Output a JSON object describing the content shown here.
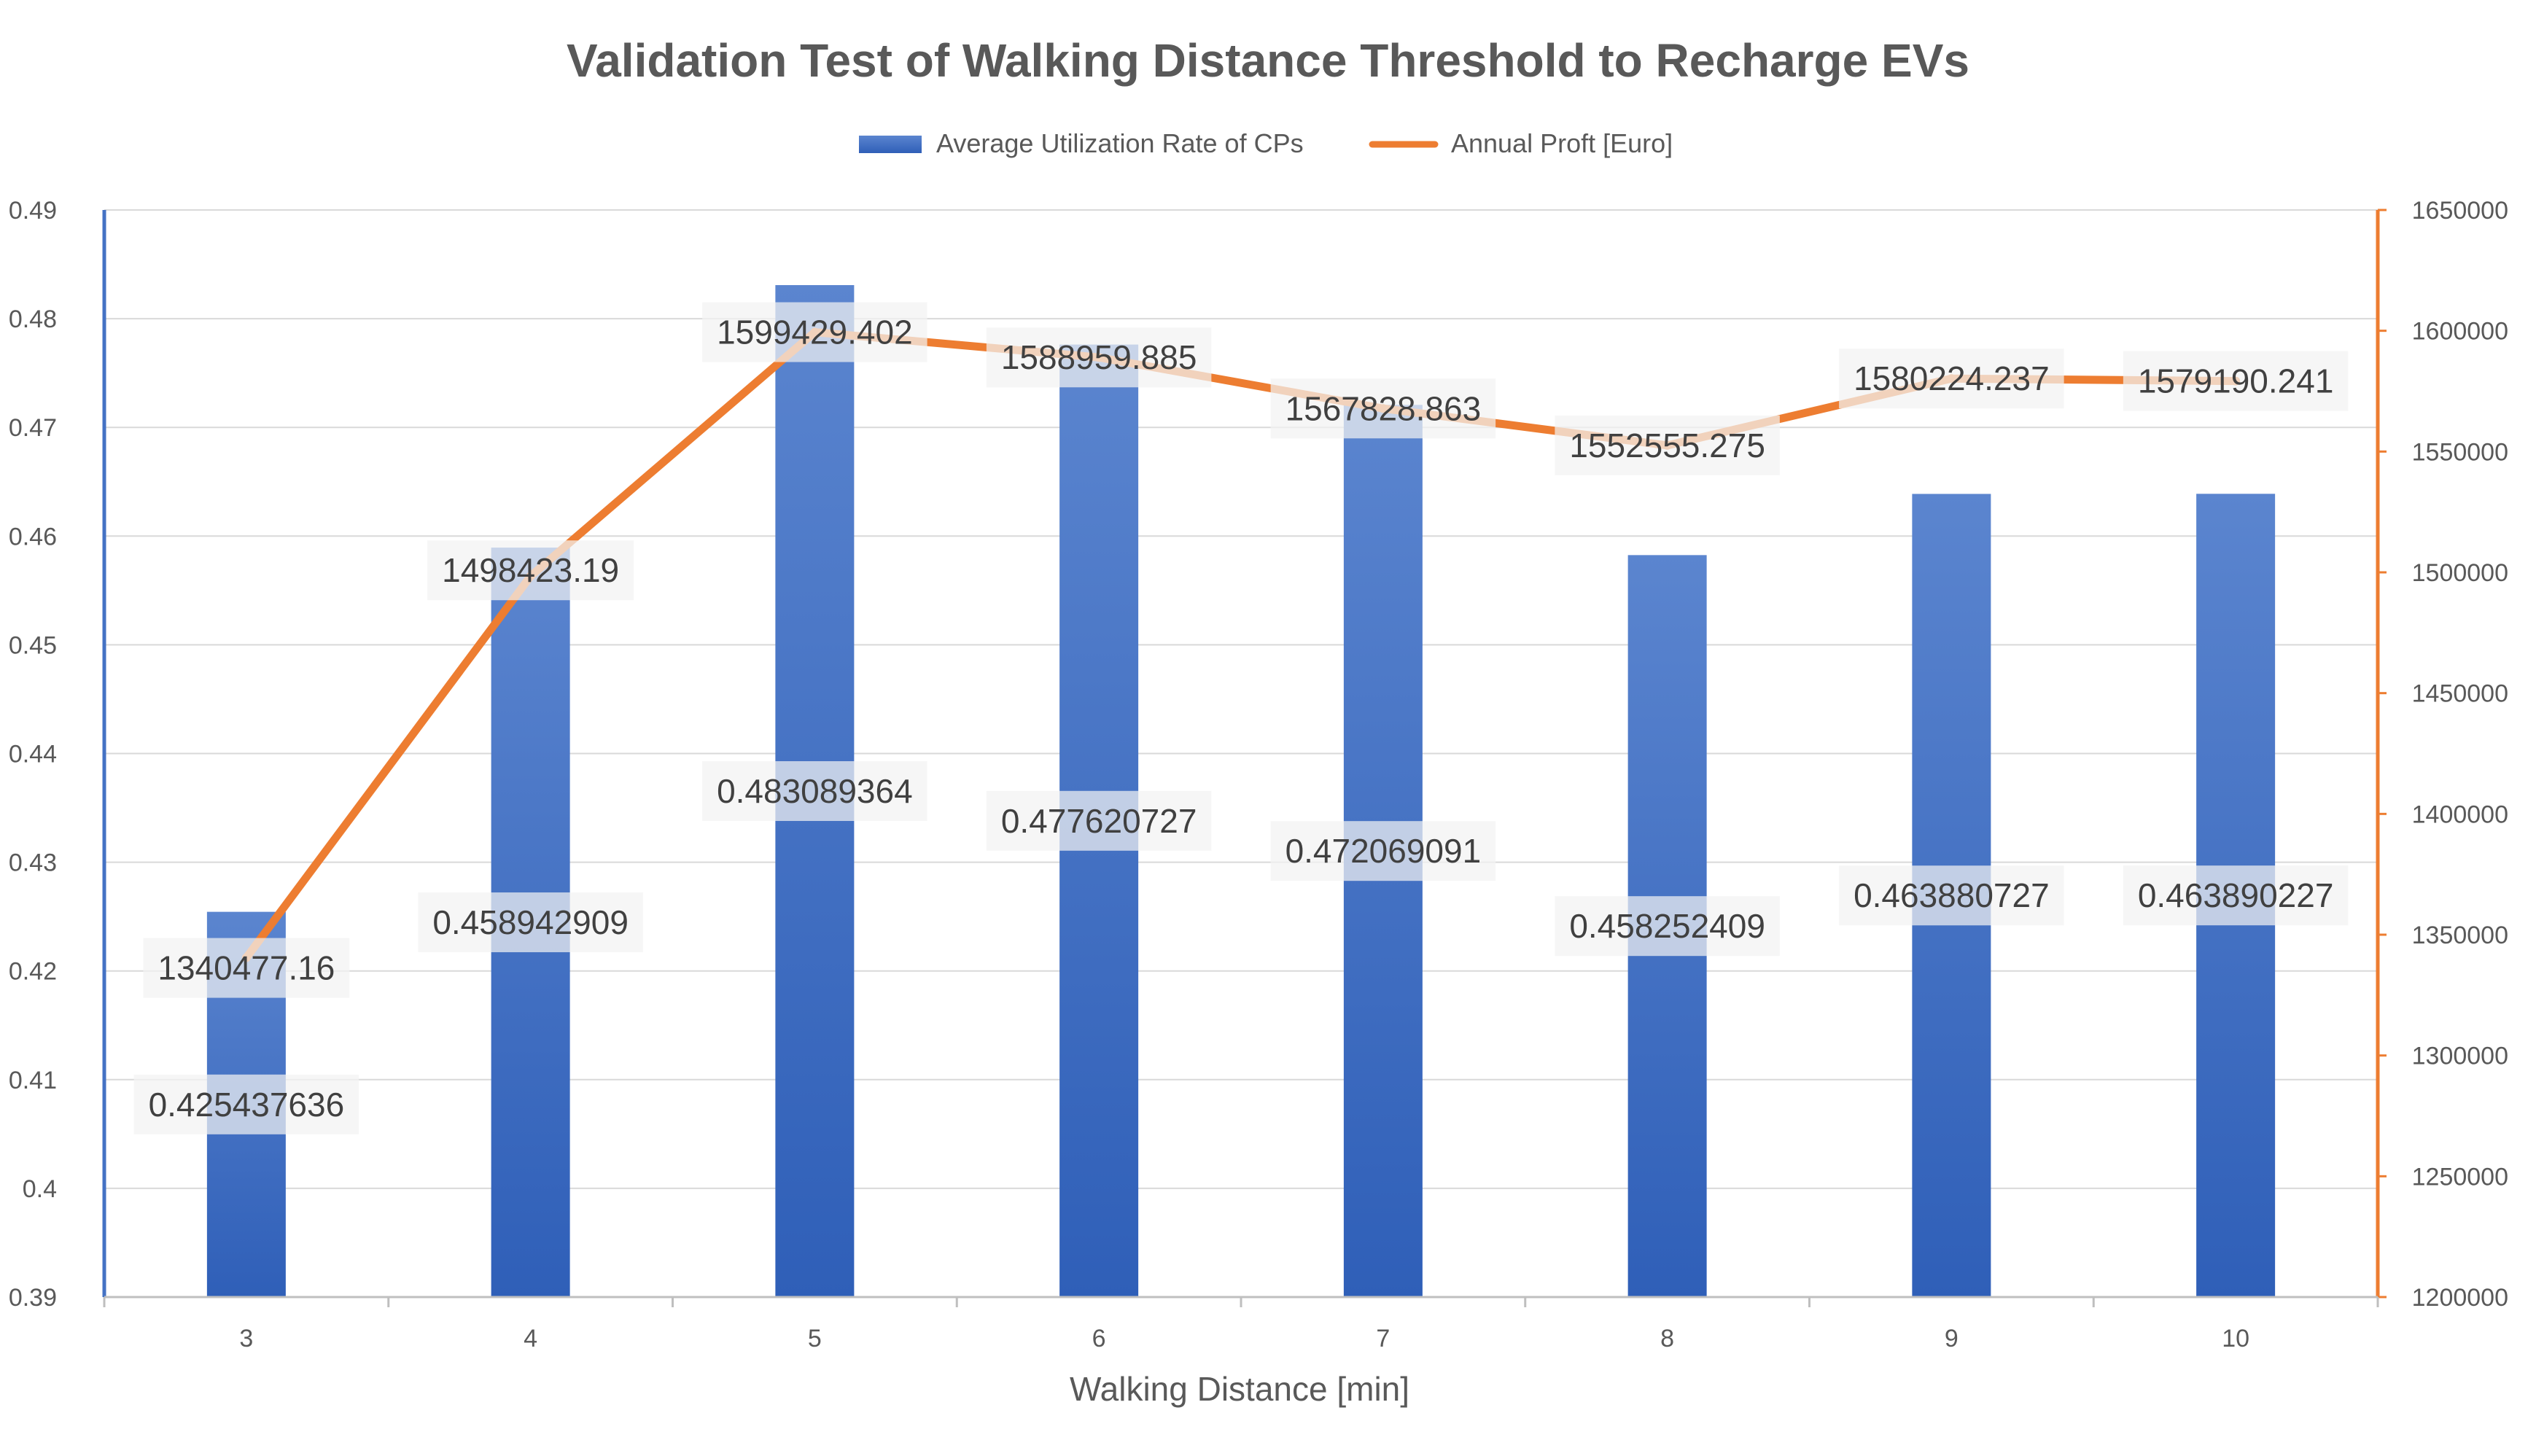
{
  "chart_data": {
    "type": "bar",
    "title": "Validation Test of Walking Distance Threshold to Recharge EVs",
    "xlabel": "Walking Distance [min]",
    "ylabel": "",
    "y2label": "",
    "categories": [
      "3",
      "4",
      "5",
      "6",
      "7",
      "8",
      "9",
      "10"
    ],
    "ylim": [
      0.39,
      0.49
    ],
    "y_ticks": [
      "0.39",
      "0.4",
      "0.41",
      "0.42",
      "0.43",
      "0.44",
      "0.45",
      "0.46",
      "0.47",
      "0.48",
      "0.49"
    ],
    "y2lim": [
      1200000,
      1650000
    ],
    "y2_ticks": [
      "1200000",
      "1250000",
      "1300000",
      "1350000",
      "1400000",
      "1450000",
      "1500000",
      "1550000",
      "1600000",
      "1650000"
    ],
    "grid": true,
    "legend_position": "top",
    "series": [
      {
        "name": "Average Utilization Rate of CPs",
        "type": "bar",
        "axis": "left",
        "color": "#4472C4",
        "values": [
          0.425437636,
          0.458942909,
          0.483089364,
          0.477620727,
          0.472069091,
          0.458252409,
          0.463880727,
          0.463890227
        ],
        "labels": [
          "0.425437636",
          "0.458942909",
          "0.483089364",
          "0.477620727",
          "0.472069091",
          "0.458252409",
          "0.463880727",
          "0.463890227"
        ]
      },
      {
        "name": "Annual Proft [Euro]",
        "type": "line",
        "axis": "right",
        "color": "#ED7D31",
        "values": [
          1340477.16,
          1498423.19,
          1599429.402,
          1588959.885,
          1567828.863,
          1552555.275,
          1580224.237,
          1579190.241
        ],
        "labels": [
          "1340477.16",
          "1498423.19",
          "1599429.402",
          "1588959.885",
          "1567828.863",
          "1552555.275",
          "1580224.237",
          "1579190.241"
        ]
      }
    ]
  }
}
